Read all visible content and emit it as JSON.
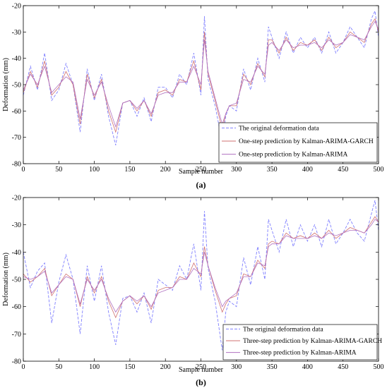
{
  "chart_data": [
    {
      "type": "line",
      "caption": "(a)",
      "xlabel": "Sample number",
      "ylabel": "Deformation (mm)",
      "xlim": [
        0,
        500
      ],
      "ylim": [
        -80,
        -20
      ],
      "xticks": [
        0,
        50,
        100,
        150,
        200,
        250,
        300,
        350,
        400,
        450,
        500
      ],
      "yticks": [
        -20,
        -30,
        -40,
        -50,
        -60,
        -70,
        -80
      ],
      "legend_position": "bottom-right",
      "x": [
        0,
        10,
        20,
        30,
        40,
        50,
        60,
        70,
        80,
        90,
        100,
        110,
        120,
        130,
        140,
        150,
        160,
        170,
        180,
        190,
        200,
        210,
        220,
        230,
        240,
        250,
        255,
        260,
        270,
        280,
        285,
        290,
        300,
        310,
        320,
        330,
        340,
        345,
        350,
        360,
        370,
        380,
        390,
        400,
        410,
        420,
        430,
        440,
        450,
        460,
        470,
        480,
        490,
        495,
        500
      ],
      "series": [
        {
          "name": "The original deformation data",
          "color": "#8080ff",
          "dash": "4,2",
          "values": [
            -54,
            -43,
            -52,
            -38,
            -56,
            -52,
            -42,
            -50,
            -68,
            -44,
            -56,
            -46,
            -62,
            -73,
            -57,
            -56,
            -62,
            -55,
            -64,
            -51,
            -51,
            -55,
            -46,
            -50,
            -38,
            -54,
            -24,
            -48,
            -58,
            -72,
            -62,
            -58,
            -60,
            -44,
            -52,
            -40,
            -49,
            -28,
            -32,
            -40,
            -30,
            -38,
            -32,
            -36,
            -32,
            -38,
            -30,
            -38,
            -34,
            -28,
            -32,
            -36,
            -25,
            -22,
            -32
          ]
        },
        {
          "name": "One-step prediction by Kalman-ARIMA-GARCH",
          "color": "#d07070",
          "dash": "",
          "values": [
            -53,
            -45,
            -51,
            -41,
            -54,
            -51,
            -45,
            -50,
            -65,
            -46,
            -55,
            -48,
            -60,
            -68,
            -57,
            -56,
            -60,
            -56,
            -62,
            -53,
            -52,
            -54,
            -48,
            -49,
            -41,
            -52,
            -30,
            -46,
            -56,
            -67,
            -61,
            -58,
            -58,
            -46,
            -50,
            -42,
            -47,
            -33,
            -33,
            -38,
            -32,
            -37,
            -34,
            -35,
            -33,
            -37,
            -32,
            -36,
            -34,
            -30,
            -32,
            -34,
            -27,
            -25,
            -30
          ]
        },
        {
          "name": "One-step prediction by Kalman-ARIMA",
          "color": "#b070c0",
          "dash": "",
          "values": [
            -52,
            -46,
            -50,
            -43,
            -53,
            -50,
            -47,
            -49,
            -63,
            -48,
            -54,
            -49,
            -58,
            -66,
            -57,
            -56,
            -59,
            -56,
            -61,
            -54,
            -53,
            -53,
            -49,
            -49,
            -43,
            -50,
            -33,
            -45,
            -55,
            -65,
            -61,
            -58,
            -57,
            -48,
            -49,
            -43,
            -46,
            -35,
            -34,
            -37,
            -33,
            -36,
            -35,
            -35,
            -34,
            -36,
            -33,
            -35,
            -34,
            -31,
            -32,
            -33,
            -28,
            -26,
            -29
          ]
        }
      ]
    },
    {
      "type": "line",
      "caption": "(b)",
      "xlabel": "Sample number",
      "ylabel": "Deformation (mm)",
      "xlim": [
        0,
        500
      ],
      "ylim": [
        -80,
        -20
      ],
      "xticks": [
        0,
        50,
        100,
        150,
        200,
        250,
        300,
        350,
        400,
        450,
        500
      ],
      "yticks": [
        -20,
        -30,
        -40,
        -50,
        -60,
        -70,
        -80
      ],
      "legend_position": "bottom-right",
      "x": [
        0,
        10,
        20,
        30,
        40,
        50,
        60,
        70,
        80,
        90,
        100,
        110,
        120,
        130,
        140,
        150,
        160,
        170,
        180,
        190,
        200,
        210,
        220,
        230,
        240,
        250,
        255,
        260,
        270,
        280,
        285,
        290,
        300,
        310,
        320,
        330,
        340,
        345,
        350,
        360,
        370,
        380,
        390,
        400,
        410,
        420,
        430,
        440,
        450,
        460,
        470,
        480,
        490,
        495,
        500
      ],
      "series": [
        {
          "name": "The original deformation data",
          "color": "#8080ff",
          "dash": "4,2",
          "values": [
            -40,
            -53,
            -47,
            -44,
            -66,
            -51,
            -41,
            -50,
            -70,
            -45,
            -58,
            -45,
            -62,
            -74,
            -57,
            -56,
            -62,
            -55,
            -66,
            -50,
            -52,
            -54,
            -45,
            -50,
            -37,
            -54,
            -25,
            -46,
            -58,
            -76,
            -62,
            -58,
            -60,
            -42,
            -52,
            -38,
            -50,
            -28,
            -32,
            -40,
            -28,
            -38,
            -30,
            -36,
            -30,
            -38,
            -28,
            -37,
            -33,
            -28,
            -33,
            -36,
            -26,
            -21,
            -32
          ]
        },
        {
          "name": "Three-step prediction by Kalman-ARIMA-GARCH",
          "color": "#d07070",
          "dash": "",
          "values": [
            -48,
            -51,
            -49,
            -46,
            -56,
            -52,
            -48,
            -50,
            -60,
            -49,
            -55,
            -49,
            -58,
            -64,
            -58,
            -56,
            -59,
            -56,
            -61,
            -54,
            -53,
            -53,
            -49,
            -50,
            -44,
            -49,
            -38,
            -45,
            -54,
            -62,
            -59,
            -57,
            -56,
            -48,
            -49,
            -43,
            -46,
            -37,
            -36,
            -37,
            -33,
            -35,
            -34,
            -35,
            -33,
            -35,
            -32,
            -35,
            -33,
            -31,
            -32,
            -33,
            -29,
            -27,
            -29
          ]
        },
        {
          "name": "Three-step prediction by Kalman-ARIMA",
          "color": "#b070c0",
          "dash": "",
          "values": [
            -49,
            -50,
            -49,
            -47,
            -55,
            -52,
            -49,
            -50,
            -59,
            -50,
            -54,
            -50,
            -57,
            -62,
            -58,
            -56,
            -58,
            -56,
            -60,
            -55,
            -54,
            -53,
            -50,
            -50,
            -46,
            -48,
            -40,
            -45,
            -53,
            -60,
            -58,
            -57,
            -55,
            -49,
            -49,
            -44,
            -45,
            -38,
            -37,
            -37,
            -34,
            -35,
            -35,
            -35,
            -34,
            -35,
            -33,
            -34,
            -33,
            -32,
            -32,
            -33,
            -30,
            -28,
            -29
          ]
        }
      ]
    }
  ]
}
